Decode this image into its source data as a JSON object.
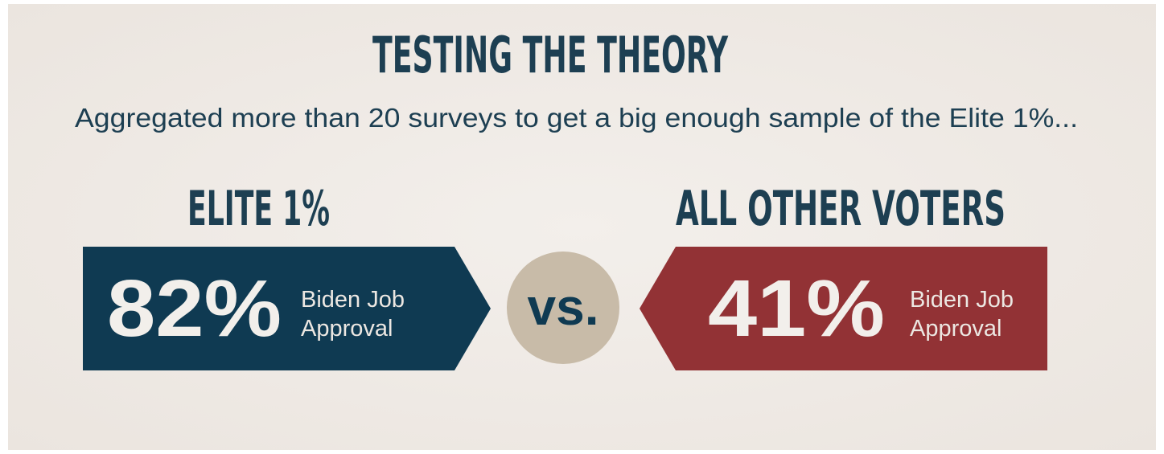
{
  "title": "TESTING THE THEORY",
  "subtitle": "Aggregated more than 20 surveys to get a big enough sample of the Elite 1%...",
  "panels": [
    {
      "heading": "ELITE 1%",
      "value": "82%",
      "label": [
        "Biden Job",
        "Approval"
      ]
    },
    {
      "heading": "ALL OTHER VOTERS",
      "value": "41%",
      "label": [
        "Biden Job",
        "Approval"
      ]
    }
  ],
  "separator": "vs."
}
